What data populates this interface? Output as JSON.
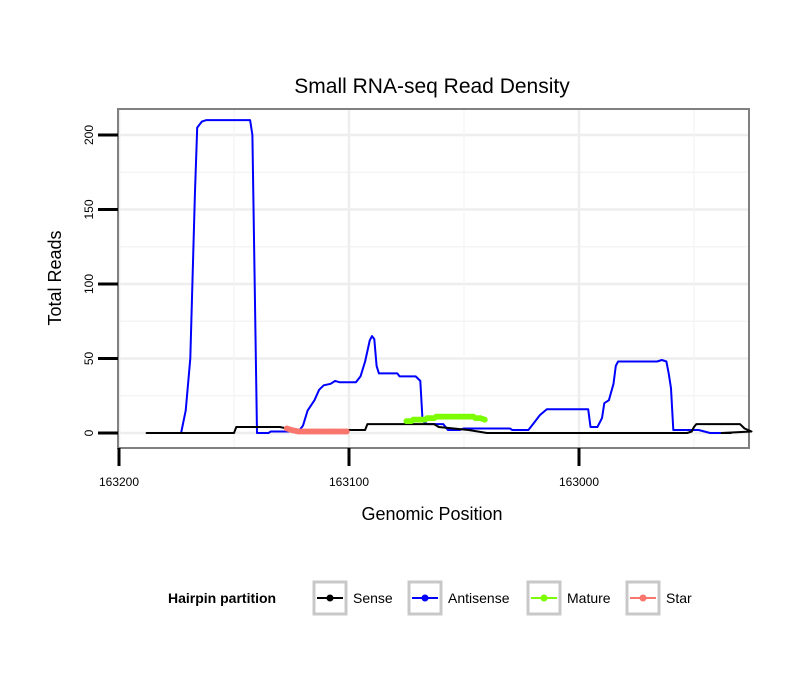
{
  "chart_data": {
    "type": "line",
    "title": "Small RNA-seq Read Density",
    "xlabel": "Genomic Position",
    "ylabel": "Total Reads",
    "x_reversed": true,
    "xlim": [
      163200,
      162925
    ],
    "ylim": [
      -10,
      218
    ],
    "x_ticks": [
      163200,
      163100,
      163000
    ],
    "x_tick_labels": [
      "163200",
      "163100",
      "163000"
    ],
    "y_ticks": [
      0,
      50,
      100,
      150,
      200
    ],
    "y_tick_labels": [
      "0",
      "50",
      "100",
      "150",
      "200"
    ],
    "grid": true,
    "legend": {
      "title": "Hairpin partition",
      "position": "bottom",
      "entries": [
        {
          "label": "Sense",
          "color": "#000000"
        },
        {
          "label": "Antisense",
          "color": "#0000ff"
        },
        {
          "label": "Mature",
          "color": "#7cfc00"
        },
        {
          "label": "Star",
          "color": "#f8766d"
        }
      ]
    },
    "series": [
      {
        "name": "Sense",
        "color": "#000000",
        "points": [
          [
            163188,
            0
          ],
          [
            163150,
            0
          ],
          [
            163149,
            4
          ],
          [
            163130,
            4
          ],
          [
            163127,
            3
          ],
          [
            163123,
            2
          ],
          [
            163093,
            2
          ],
          [
            163092,
            6
          ],
          [
            163063,
            6
          ],
          [
            163061,
            4
          ],
          [
            163048,
            2
          ],
          [
            163040,
            0
          ],
          [
            162953,
            0
          ],
          [
            162951,
            1
          ],
          [
            162950,
            4
          ],
          [
            162949,
            6
          ],
          [
            162930,
            6
          ],
          [
            162928,
            3
          ],
          [
            162925,
            1
          ],
          [
            162938,
            0
          ],
          [
            162934,
            0
          ]
        ]
      },
      {
        "name": "Antisense",
        "color": "#0000ff",
        "points": [
          [
            163173,
            0
          ],
          [
            163171,
            15
          ],
          [
            163169,
            50
          ],
          [
            163167,
            160
          ],
          [
            163166,
            205
          ],
          [
            163164,
            209
          ],
          [
            163162,
            210
          ],
          [
            163143,
            210
          ],
          [
            163142,
            200
          ],
          [
            163140,
            0
          ],
          [
            163135,
            0
          ],
          [
            163134,
            1
          ],
          [
            163122,
            1
          ],
          [
            163120,
            5
          ],
          [
            163118,
            15
          ],
          [
            163115,
            22
          ],
          [
            163113,
            29
          ],
          [
            163111,
            32
          ],
          [
            163108,
            33
          ],
          [
            163106,
            35
          ],
          [
            163104,
            34
          ],
          [
            163097,
            34
          ],
          [
            163095,
            38
          ],
          [
            163093,
            48
          ],
          [
            163092,
            55
          ],
          [
            163091,
            62
          ],
          [
            163090,
            65
          ],
          [
            163089,
            63
          ],
          [
            163088,
            45
          ],
          [
            163087,
            40
          ],
          [
            163079,
            40
          ],
          [
            163078,
            38
          ],
          [
            163071,
            38
          ],
          [
            163069,
            35
          ],
          [
            163068,
            8
          ],
          [
            163066,
            6
          ],
          [
            163059,
            6
          ],
          [
            163057,
            2
          ],
          [
            163052,
            2
          ],
          [
            163050,
            3
          ],
          [
            163030,
            3
          ],
          [
            163029,
            2
          ],
          [
            163022,
            2
          ],
          [
            163020,
            6
          ],
          [
            163017,
            12
          ],
          [
            163014,
            16
          ],
          [
            162996,
            16
          ],
          [
            162995,
            4
          ],
          [
            162992,
            4
          ],
          [
            162990,
            10
          ],
          [
            162989,
            20
          ],
          [
            162987,
            22
          ],
          [
            162985,
            33
          ],
          [
            162984,
            45
          ],
          [
            162983,
            48
          ],
          [
            162966,
            48
          ],
          [
            162964,
            49
          ],
          [
            162962,
            48
          ],
          [
            162961,
            40
          ],
          [
            162960,
            30
          ],
          [
            162959,
            2
          ],
          [
            162948,
            2
          ],
          [
            162943,
            0
          ],
          [
            162936,
            0
          ]
        ]
      },
      {
        "name": "Mature",
        "color": "#7cfc00",
        "points": [
          [
            163075,
            8
          ],
          [
            163073,
            8
          ],
          [
            163072,
            9
          ],
          [
            163067,
            9
          ],
          [
            163066,
            10
          ],
          [
            163063,
            10
          ],
          [
            163062,
            11
          ],
          [
            163046,
            11
          ],
          [
            163045,
            10
          ],
          [
            163043,
            10
          ],
          [
            163041,
            9
          ]
        ]
      },
      {
        "name": "Star",
        "color": "#f8766d",
        "points": [
          [
            163127,
            3
          ],
          [
            163125,
            2
          ],
          [
            163122,
            1
          ],
          [
            163105,
            1
          ],
          [
            163103,
            1
          ],
          [
            163101,
            1
          ]
        ]
      }
    ]
  }
}
